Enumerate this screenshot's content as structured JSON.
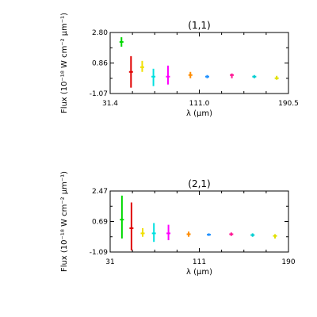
{
  "colors": {
    "background": "#ffffff",
    "axes": "#000000",
    "segments": [
      "#00d800",
      "#e00000",
      "#f0e000",
      "#00e0e0",
      "#ff00ff",
      "#ff8c00",
      "#1e90ff",
      "#ff1493",
      "#00ced1",
      "#e0e000"
    ]
  },
  "chart_data": [
    {
      "type": "scatter",
      "title": "(1,1)",
      "xlabel": "λ (μm)",
      "ylabel": "Flux (10⁻¹⁸ W cm⁻² μm⁻¹)",
      "xlim": [
        31.4,
        190.5
      ],
      "ylim": [
        -1.07,
        2.8
      ],
      "x_ticks": [
        "31.4",
        "111.0",
        "190.5"
      ],
      "y_ticks": [
        "2.80",
        "0.86",
        "-1.07"
      ],
      "grid": false,
      "segments": [
        {
          "x": 41.5,
          "ymin": 1.9,
          "ymax": 2.5,
          "ycenter": 2.2
        },
        {
          "x": 50.0,
          "ymin": -0.7,
          "ymax": 1.3,
          "ycenter": 0.3
        },
        {
          "x": 60.0,
          "ymin": 0.3,
          "ymax": 1.0,
          "ycenter": 0.6
        },
        {
          "x": 70.0,
          "ymin": -0.6,
          "ymax": 0.5,
          "ycenter": 0.0
        },
        {
          "x": 83.0,
          "ymin": -0.5,
          "ymax": 0.7,
          "ycenter": 0.0
        },
        {
          "x": 103.0,
          "ymin": -0.1,
          "ymax": 0.3,
          "ycenter": 0.1
        },
        {
          "x": 118.0,
          "ymin": -0.1,
          "ymax": 0.1,
          "ycenter": 0.0
        },
        {
          "x": 140.0,
          "ymin": -0.1,
          "ymax": 0.2,
          "ycenter": 0.1
        },
        {
          "x": 160.0,
          "ymin": -0.1,
          "ymax": 0.1,
          "ycenter": 0.0
        },
        {
          "x": 180.0,
          "ymin": -0.2,
          "ymax": 0.05,
          "ycenter": -0.1
        }
      ]
    },
    {
      "type": "scatter",
      "title": "(2,1)",
      "xlabel": "λ (μm)",
      "ylabel": "Flux (10⁻¹⁸ W cm⁻² μm⁻¹)",
      "xlim": [
        31,
        190
      ],
      "ylim": [
        -1.09,
        2.47
      ],
      "x_ticks": [
        "31",
        "111",
        "190"
      ],
      "y_ticks": [
        "2.47",
        "0.69",
        "-1.09"
      ],
      "grid": false,
      "segments": [
        {
          "x": 41.5,
          "ymin": -0.3,
          "ymax": 2.2,
          "ycenter": 0.8
        },
        {
          "x": 50.0,
          "ymin": -1.0,
          "ymax": 1.8,
          "ycenter": 0.3
        },
        {
          "x": 60.0,
          "ymin": -0.2,
          "ymax": 0.3,
          "ycenter": 0.0
        },
        {
          "x": 70.0,
          "ymin": -0.5,
          "ymax": 0.6,
          "ycenter": 0.0
        },
        {
          "x": 83.0,
          "ymin": -0.4,
          "ymax": 0.5,
          "ycenter": 0.0
        },
        {
          "x": 101.0,
          "ymin": -0.2,
          "ymax": 0.1,
          "ycenter": -0.05
        },
        {
          "x": 119.0,
          "ymin": -0.15,
          "ymax": 0.0,
          "ycenter": -0.08
        },
        {
          "x": 139.0,
          "ymin": -0.15,
          "ymax": 0.05,
          "ycenter": -0.05
        },
        {
          "x": 158.0,
          "ymin": -0.2,
          "ymax": 0.0,
          "ycenter": -0.1
        },
        {
          "x": 178.0,
          "ymin": -0.3,
          "ymax": -0.05,
          "ycenter": -0.15
        }
      ]
    }
  ]
}
